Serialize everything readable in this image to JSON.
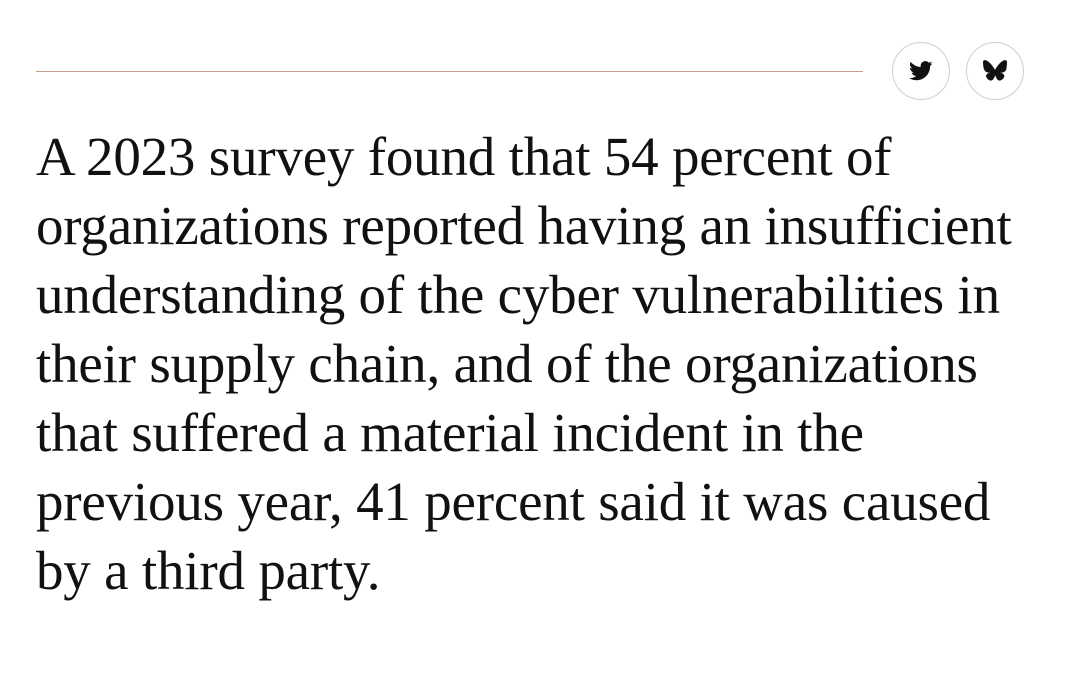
{
  "share": {
    "buttons": [
      {
        "name": "twitter",
        "icon": "twitter-bird-icon"
      },
      {
        "name": "bluesky",
        "icon": "butterfly-icon"
      }
    ]
  },
  "quote": {
    "text": "A 2023 survey found that 54 percent of organizations reported having an insufficient understanding of the cyber vulnerabilities in their supply chain, and of the organizations that suffered a material incident in the previous year, 41 percent said it was caused by a third party."
  },
  "colors": {
    "rule": "#c89a8c",
    "text": "#111111",
    "button_border": "#cfcfcf"
  }
}
